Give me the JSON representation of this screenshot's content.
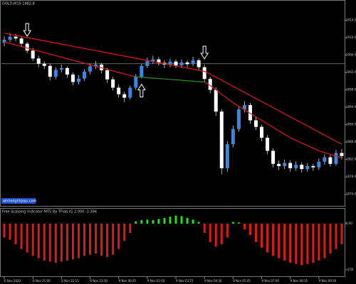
{
  "chart_data": {
    "type": "candlestick",
    "title": "GOLD,M15 1882.8",
    "watermark": "whitelightpips.com",
    "candles": {
      "open": [
        1908.8,
        1909.5,
        1910.2,
        1909.8,
        1908.6,
        1907.0,
        1905.2,
        1904.0,
        1903.5,
        1901.0,
        1902.6,
        1903.0,
        1901.5,
        1899.8,
        1900.6,
        1902.2,
        1903.4,
        1903.8,
        1902.5,
        1900.4,
        1898.5,
        1897.0,
        1896.2,
        1898.5,
        1901.0,
        1903.5,
        1904.6,
        1905.0,
        1904.2,
        1903.8,
        1904.5,
        1903.6,
        1904.3,
        1903.9,
        1904.8,
        1903.2,
        1900.5,
        1898.0,
        1893.0,
        1880.0,
        1885.5,
        1889.0,
        1893.5,
        1894.5,
        1891.0,
        1889.5,
        1887.0,
        1884.0,
        1881.0,
        1880.5,
        1881.2,
        1880.0,
        1880.8,
        1879.8,
        1880.5,
        1880.2,
        1881.5,
        1882.5,
        1881.0,
        1883.5
      ],
      "high": [
        1910.3,
        1911.0,
        1910.8,
        1910.2,
        1909.0,
        1907.6,
        1905.8,
        1904.6,
        1904.0,
        1903.2,
        1903.8,
        1903.4,
        1902.0,
        1901.4,
        1902.8,
        1904.0,
        1904.6,
        1904.2,
        1903.0,
        1901.0,
        1899.2,
        1897.6,
        1899.0,
        1901.6,
        1904.0,
        1905.4,
        1905.8,
        1905.6,
        1904.8,
        1905.2,
        1905.0,
        1905.0,
        1904.8,
        1905.6,
        1905.2,
        1903.8,
        1901.0,
        1898.6,
        1893.6,
        1886.2,
        1889.8,
        1894.2,
        1895.4,
        1895.0,
        1891.8,
        1890.0,
        1887.6,
        1884.6,
        1881.8,
        1882.0,
        1881.8,
        1881.6,
        1881.4,
        1881.2,
        1881.0,
        1882.2,
        1883.2,
        1883.0,
        1884.2,
        1884.4
      ],
      "low": [
        1908.0,
        1909.0,
        1909.2,
        1908.0,
        1906.4,
        1904.6,
        1903.2,
        1902.8,
        1900.2,
        1900.4,
        1902.0,
        1900.8,
        1899.0,
        1899.2,
        1900.0,
        1901.6,
        1902.8,
        1901.8,
        1899.6,
        1897.8,
        1896.2,
        1895.2,
        1895.8,
        1898.0,
        1900.6,
        1903.0,
        1904.0,
        1903.6,
        1903.0,
        1903.2,
        1903.0,
        1903.0,
        1903.2,
        1903.4,
        1902.6,
        1899.8,
        1897.2,
        1892.0,
        1878.6,
        1879.2,
        1884.8,
        1888.4,
        1892.8,
        1890.2,
        1888.8,
        1886.2,
        1883.2,
        1880.2,
        1879.6,
        1879.8,
        1879.2,
        1879.4,
        1879.0,
        1879.2,
        1879.4,
        1879.6,
        1880.8,
        1880.4,
        1880.6,
        1882.0
      ],
      "close": [
        1909.5,
        1910.2,
        1909.8,
        1908.6,
        1907.0,
        1905.2,
        1904.0,
        1903.5,
        1901.0,
        1902.6,
        1903.0,
        1901.5,
        1899.8,
        1900.6,
        1902.2,
        1903.4,
        1903.8,
        1902.5,
        1900.4,
        1898.5,
        1897.0,
        1896.2,
        1898.5,
        1901.0,
        1903.5,
        1904.6,
        1905.0,
        1904.2,
        1903.8,
        1904.5,
        1903.6,
        1904.3,
        1903.9,
        1904.8,
        1903.2,
        1900.5,
        1898.0,
        1893.0,
        1880.0,
        1885.5,
        1889.0,
        1893.5,
        1894.5,
        1891.0,
        1889.5,
        1887.0,
        1884.0,
        1881.0,
        1880.5,
        1881.2,
        1880.0,
        1880.8,
        1879.8,
        1880.5,
        1880.2,
        1881.5,
        1882.5,
        1881.0,
        1883.5,
        1882.8
      ]
    },
    "bull_color": "#3a86e0",
    "bear_color": "#ffffff",
    "wick_color": "#d8d8d8",
    "series": [
      {
        "color": "#e01818",
        "values": [
          1911.0,
          1910.75,
          1910.5,
          1910.25,
          1910.0,
          1909.75,
          1909.5,
          1909.25,
          1909.0,
          1908.75,
          1908.5,
          1908.25,
          1908.0,
          1907.75,
          1907.5,
          1907.25,
          1907.0,
          1906.75,
          1906.5,
          1906.25,
          1906.0,
          1905.75,
          1905.5,
          1905.25,
          1905.0,
          1904.75,
          1904.5,
          1904.25,
          1904.0,
          1903.75,
          1903.5,
          1903.25,
          1903.0,
          1902.75,
          1902.5,
          1902.25,
          1901.6,
          1900.9,
          1900.2,
          1899.5,
          1898.8,
          1898.1,
          1897.4,
          1896.7,
          1896.0,
          1895.3,
          1894.6,
          1893.9,
          1893.2,
          1892.5,
          1891.8,
          1891.1,
          1890.4,
          1889.7,
          1889.0,
          1888.3,
          1887.6,
          1886.9,
          1886.2,
          1885.5
        ]
      },
      {
        "color": "#e01818",
        "highlight": {
          "start": 23,
          "end": 35,
          "color": "#2e8b2e"
        },
        "values": [
          1909.0,
          1908.65,
          1908.3,
          1907.95,
          1907.6,
          1907.25,
          1906.9,
          1906.55,
          1906.2,
          1905.85,
          1905.5,
          1905.15,
          1904.8,
          1904.45,
          1904.1,
          1903.75,
          1903.4,
          1903.05,
          1902.7,
          1902.35,
          1902.0,
          1901.65,
          1901.3,
          1901.0,
          1900.9,
          1900.8,
          1900.7,
          1900.6,
          1900.5,
          1900.4,
          1900.3,
          1900.2,
          1900.1,
          1900.0,
          1899.9,
          1899.8,
          1899.0,
          1898.0,
          1897.0,
          1896.0,
          1895.0,
          1894.2,
          1893.4,
          1892.6,
          1891.8,
          1891.0,
          1890.2,
          1889.4,
          1888.6,
          1887.8,
          1887.0,
          1886.4,
          1885.8,
          1885.2,
          1884.6,
          1884.0,
          1883.6,
          1883.2,
          1882.8,
          1882.4
        ]
      }
    ],
    "hline": 1904.0,
    "arrows": [
      {
        "index": 4,
        "direction": "down"
      },
      {
        "index": 24,
        "direction": "up"
      },
      {
        "index": 35,
        "direction": "down"
      }
    ],
    "ylim": [
      1872,
      1917
    ],
    "yticks": [
      {
        "value": 1874,
        "label": "1874.00"
      },
      {
        "value": 1878,
        "label": "1878.00"
      },
      {
        "value": 1882,
        "label": "1882.00"
      },
      {
        "value": 1886,
        "label": "1886.00"
      },
      {
        "value": 1890,
        "label": "1890.00"
      },
      {
        "value": 1894,
        "label": "1894.00"
      },
      {
        "value": 1898,
        "label": "1898.00"
      },
      {
        "value": 1902,
        "label": "1902.00"
      },
      {
        "value": 1906,
        "label": "1906.00"
      },
      {
        "value": 1910,
        "label": "1910.00"
      },
      {
        "value": 1914,
        "label": "1914.00"
      }
    ],
    "x_labels": [
      {
        "index": 0,
        "label": "6 Nov 2020"
      },
      {
        "index": 5,
        "label": "6 Nov 21:00"
      },
      {
        "index": 10,
        "label": "6 Nov 22:15"
      },
      {
        "index": 15,
        "label": "6 Nov 23:30"
      },
      {
        "index": 20,
        "label": "9 Nov 00:45"
      },
      {
        "index": 25,
        "label": "9 Nov 02:00"
      },
      {
        "index": 30,
        "label": "9 Nov 03:15"
      },
      {
        "index": 35,
        "label": "9 Nov 04:30"
      },
      {
        "index": 40,
        "label": "9 Nov 05:45"
      },
      {
        "index": 45,
        "label": "9 Nov 07:00"
      },
      {
        "index": 50,
        "label": "9 Nov 08:15"
      },
      {
        "index": 55,
        "label": "9 Nov 09:30"
      }
    ],
    "indicator": {
      "title": "Free Scalping Indicator MT5 By TFlab IG 2.000 -3.394",
      "values": [
        -1.2,
        -1.4,
        -1.8,
        -2.2,
        -2.5,
        -2.8,
        -3.0,
        -3.2,
        -3.3,
        -3.4,
        -3.3,
        -3.2,
        -3.1,
        -3.0,
        -2.8,
        -2.7,
        -2.6,
        -2.8,
        -2.9,
        -2.7,
        -2.2,
        -1.5,
        -0.8,
        0.2,
        0.3,
        0.35,
        0.3,
        0.4,
        0.5,
        0.6,
        0.7,
        0.65,
        0.5,
        0.35,
        0.15,
        -0.8,
        -1.6,
        -2.0,
        -1.8,
        -1.2,
        0.15,
        0.1,
        -0.5,
        -1.0,
        -1.6,
        -2.1,
        -2.5,
        -2.8,
        -3.0,
        -3.2,
        -3.4,
        -3.5,
        -3.6,
        -3.5,
        -3.4,
        -3.2,
        -3.0,
        -2.6,
        -2.2,
        -1.8
      ],
      "pos_color": "#22dd22",
      "neg_color": "#e01818",
      "ylim": [
        -4.5,
        0.8
      ],
      "yticks": [
        {
          "value": 0,
          "label": "0.00"
        },
        {
          "value": -4,
          "label": "-4.00"
        }
      ]
    }
  }
}
